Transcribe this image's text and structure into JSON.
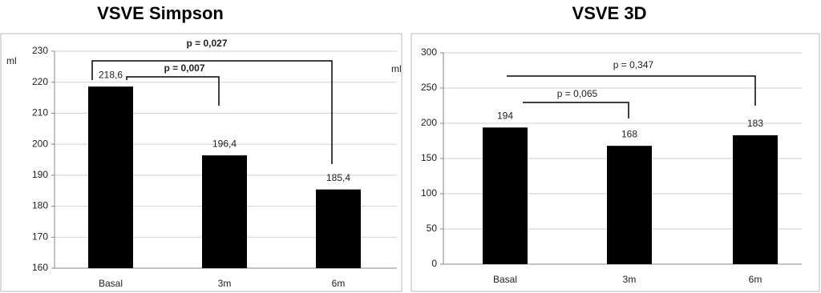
{
  "chart_data": [
    {
      "type": "bar",
      "title": "VSVE Simpson",
      "y_label": "ml",
      "categories": [
        "Basal",
        "3m",
        "6m"
      ],
      "values": [
        218.6,
        196.4,
        185.4
      ],
      "value_labels": [
        "218,6",
        "196,4",
        "185,4"
      ],
      "color": "#000000",
      "ylim": [
        160,
        230
      ],
      "yticks": [
        160,
        170,
        180,
        190,
        200,
        210,
        220,
        230
      ],
      "grid": true,
      "annotations": [
        "p = 0,027",
        "p = 0,007"
      ]
    },
    {
      "type": "bar",
      "title": "VSVE 3D",
      "y_label": "ml",
      "categories": [
        "Basal",
        "3m",
        "6m"
      ],
      "values": [
        194,
        168,
        183
      ],
      "color": "#000000",
      "ylim": [
        0,
        300
      ],
      "yticks": [
        0,
        50,
        100,
        150,
        200,
        250,
        300
      ],
      "grid": true,
      "annotations": [
        "p = 0,347",
        "p = 0,065"
      ]
    }
  ]
}
